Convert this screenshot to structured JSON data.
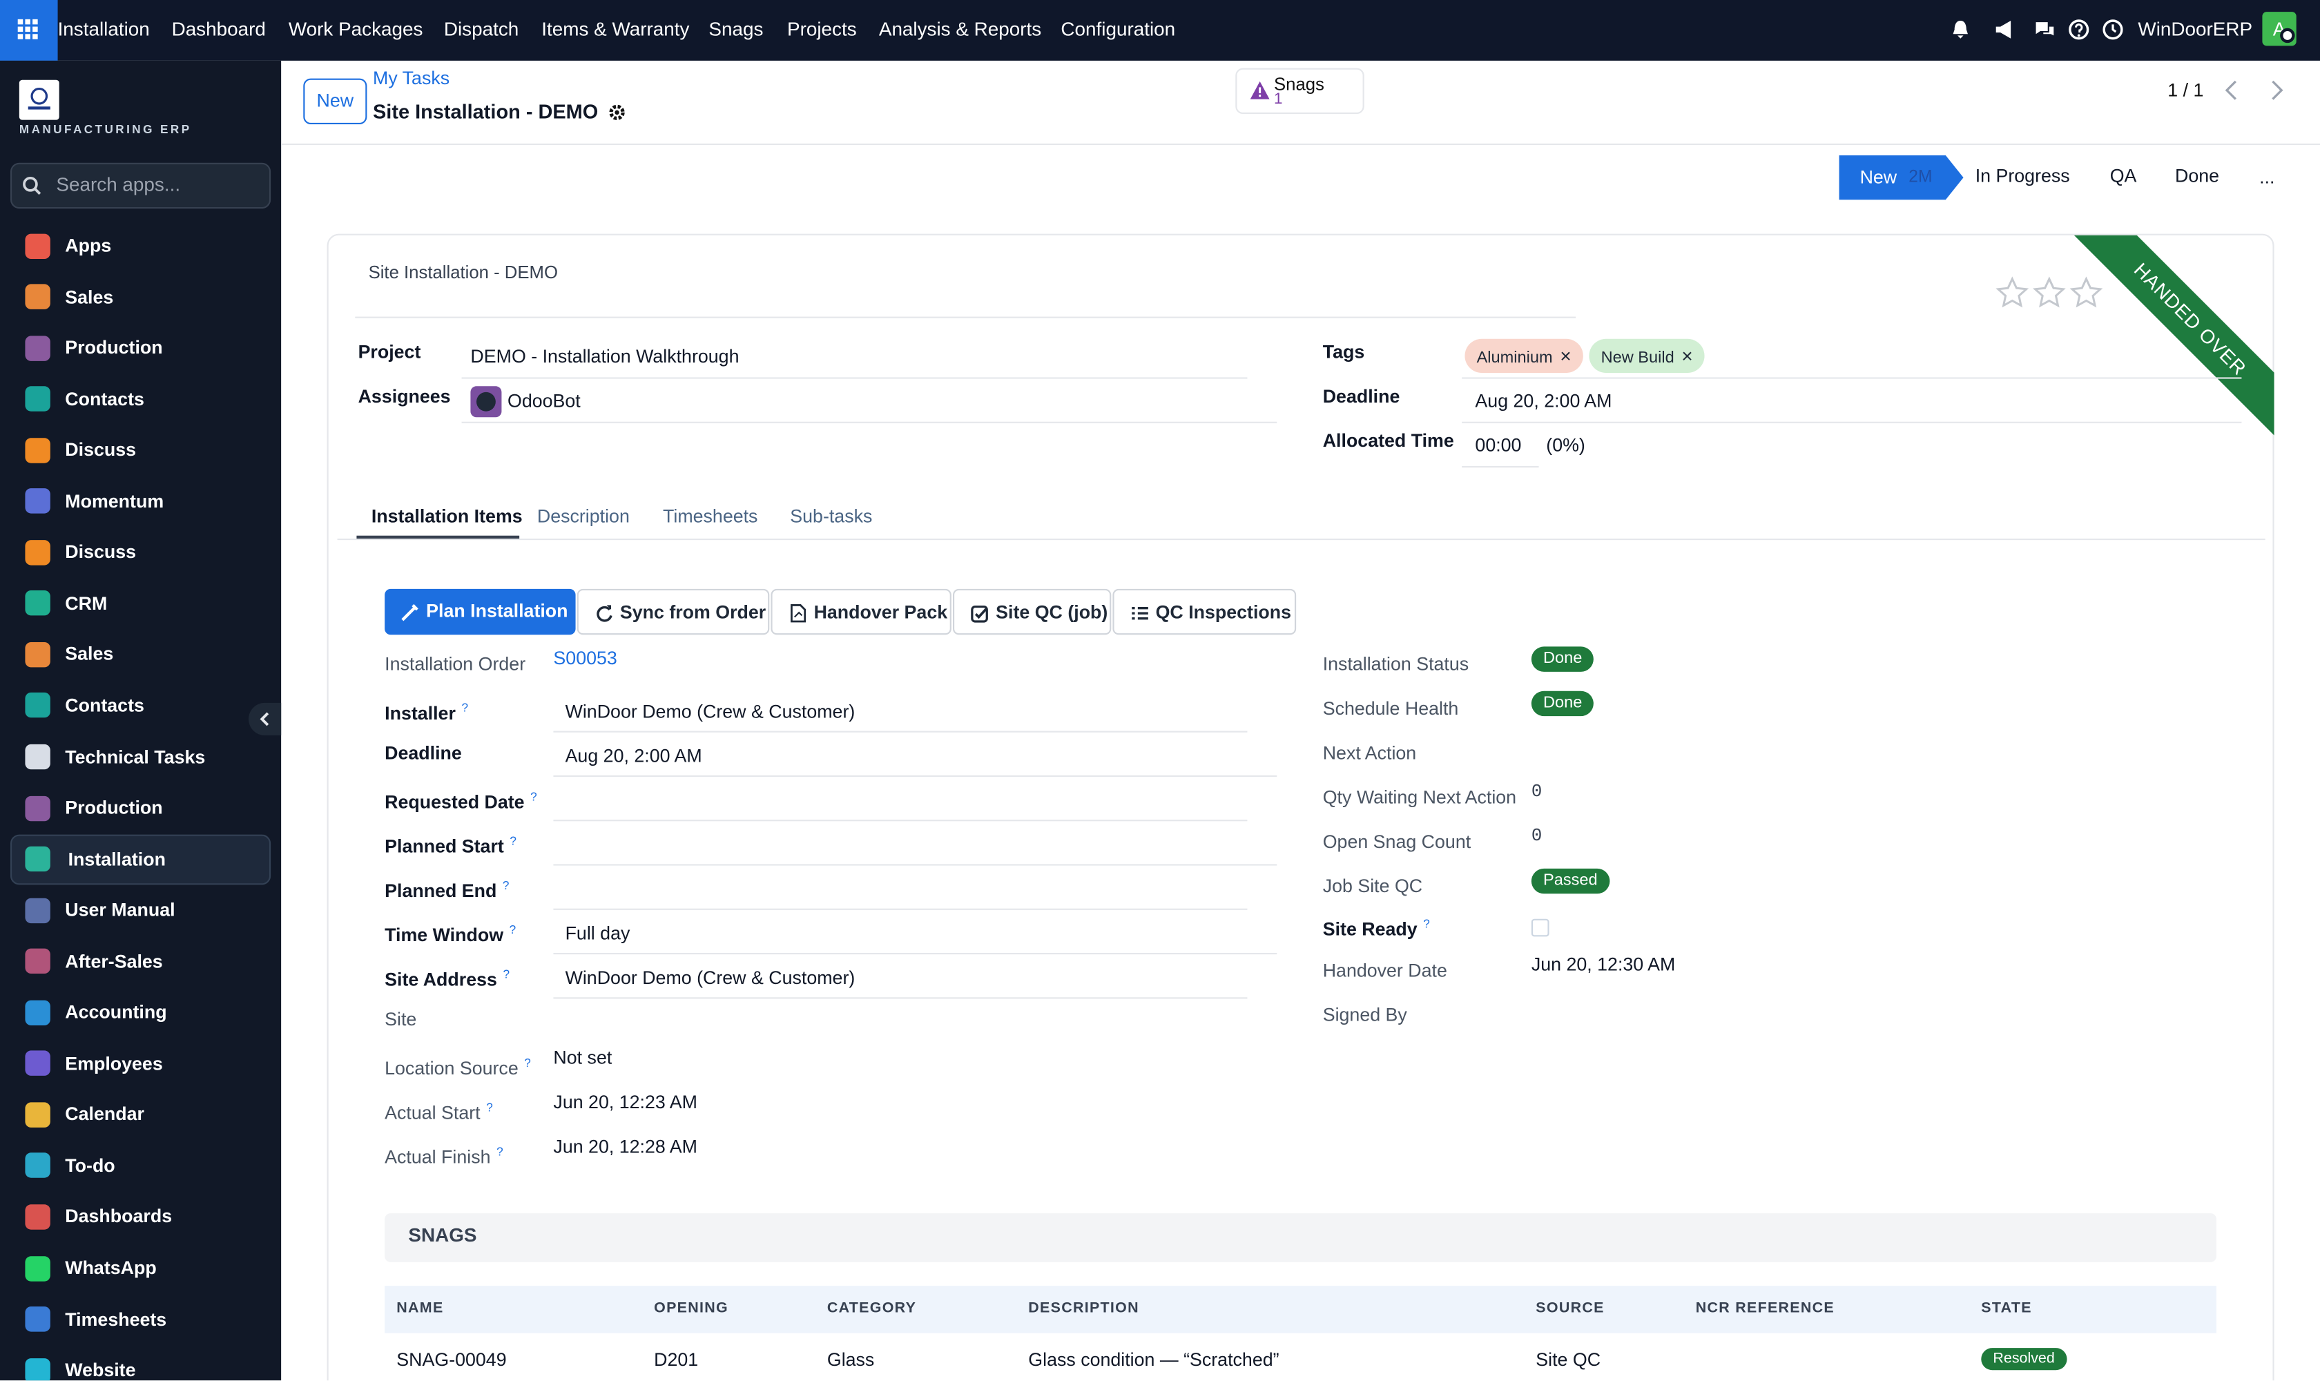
{
  "topbar": {
    "app_name": "Installation",
    "menu": [
      "Dashboard",
      "Work Packages",
      "Dispatch",
      "Items & Warranty",
      "Snags",
      "Projects",
      "Analysis & Reports",
      "Configuration"
    ],
    "company": "WinDoorERP",
    "avatar": "A"
  },
  "sidebar": {
    "brand": "MANUFACTURING ERP",
    "search_placeholder": "Search apps...",
    "apps": [
      {
        "label": "Apps",
        "icon_color": "#e8594a"
      },
      {
        "label": "Sales",
        "icon_color": "#e8873a"
      },
      {
        "label": "Production",
        "icon_color": "#8a5a9e"
      },
      {
        "label": "Contacts",
        "icon_color": "#1aa39a"
      },
      {
        "label": "Discuss",
        "icon_color": "#f08a24"
      },
      {
        "label": "Momentum",
        "icon_color": "#5b6fd6"
      },
      {
        "label": "Discuss",
        "icon_color": "#f08a24"
      },
      {
        "label": "CRM",
        "icon_color": "#1fae8f"
      },
      {
        "label": "Sales",
        "icon_color": "#e8873a"
      },
      {
        "label": "Contacts",
        "icon_color": "#1aa39a"
      },
      {
        "label": "Technical Tasks",
        "icon_color": "#d8dde6"
      },
      {
        "label": "Production",
        "icon_color": "#8a5a9e"
      },
      {
        "label": "Installation",
        "icon_color": "#2bb39a",
        "active": true
      },
      {
        "label": "User Manual",
        "icon_color": "#5b6fa8"
      },
      {
        "label": "After-Sales",
        "icon_color": "#b0547a"
      },
      {
        "label": "Accounting",
        "icon_color": "#2a8fd6"
      },
      {
        "label": "Employees",
        "icon_color": "#6d5bd0"
      },
      {
        "label": "Calendar",
        "icon_color": "#e9b53a"
      },
      {
        "label": "To-do",
        "icon_color": "#2aa7c9"
      },
      {
        "label": "Dashboards",
        "icon_color": "#d9534f"
      },
      {
        "label": "WhatsApp",
        "icon_color": "#25d366"
      },
      {
        "label": "Timesheets",
        "icon_color": "#3a7bd5"
      },
      {
        "label": "Website",
        "icon_color": "#23b5d3"
      }
    ]
  },
  "control_panel": {
    "new_button": "New",
    "breadcrumb": "My Tasks",
    "record_title": "Site Installation - DEMO",
    "smart_button": {
      "label": "Snags",
      "count": 1
    },
    "pager": "1 / 1"
  },
  "statusbar": {
    "stages": [
      {
        "label": "New",
        "active": true,
        "duration": "2M"
      },
      {
        "label": "In Progress"
      },
      {
        "label": "QA"
      },
      {
        "label": "Done"
      }
    ],
    "more": "..."
  },
  "form": {
    "name": "Site Installation - DEMO",
    "ribbon": "HANDED OVER",
    "help_mark": "?",
    "remove_mark": "×",
    "header_left": [
      {
        "label": "Project",
        "value": "DEMO - Installation Walkthrough"
      },
      {
        "label": "Assignees",
        "value": "OdooBot"
      }
    ],
    "header_right": [
      {
        "label": "Tags",
        "tags": [
          {
            "label": "Aluminium",
            "color": "#f9d6cc"
          },
          {
            "label": "New Build",
            "color": "#d2efd4"
          }
        ]
      },
      {
        "label": "Deadline",
        "value": "Aug 20, 2:00 AM"
      },
      {
        "label": "Allocated Time",
        "value": "00:00",
        "extra": "(0%)"
      }
    ],
    "tabs": [
      {
        "label": "Installation Items",
        "active": true
      },
      {
        "label": "Description"
      },
      {
        "label": "Timesheets"
      },
      {
        "label": "Sub-tasks"
      }
    ],
    "actions": [
      {
        "label": "Plan Installation",
        "primary": true
      },
      {
        "label": "Sync from Order"
      },
      {
        "label": "Handover Pack"
      },
      {
        "label": "Site QC (job)"
      },
      {
        "label": "QC Inspections"
      }
    ],
    "fields_left": [
      {
        "label": "Installation Order",
        "value": "S00053",
        "kind": "link"
      },
      {
        "label": "Installer",
        "value": "WinDoor Demo (Crew & Customer)",
        "kind": "input",
        "help": true
      },
      {
        "label": "Deadline",
        "value": "Aug 20, 2:00 AM",
        "kind": "input"
      },
      {
        "label": "Requested Date",
        "value": null,
        "kind": "input",
        "help": true
      },
      {
        "label": "Planned Start",
        "value": null,
        "kind": "input",
        "help": true
      },
      {
        "label": "Planned End",
        "value": null,
        "kind": "input",
        "help": true
      },
      {
        "label": "Time Window",
        "value": "Full day",
        "kind": "input",
        "help": true
      },
      {
        "label": "Site Address",
        "value": "WinDoor Demo (Crew & Customer)",
        "kind": "input",
        "help": true
      },
      {
        "label": "Site",
        "value": null,
        "kind": "text"
      },
      {
        "label": "Location Source",
        "value": "Not set",
        "kind": "text",
        "help": true
      },
      {
        "label": "Actual Start",
        "value": "Jun 20, 12:23 AM",
        "kind": "text",
        "help": true
      },
      {
        "label": "Actual Finish",
        "value": "Jun 20, 12:28 AM",
        "kind": "text",
        "help": true
      }
    ],
    "fields_right": [
      {
        "label": "Installation Status",
        "value": "Done",
        "kind": "badge",
        "color": "#1f7a3b"
      },
      {
        "label": "Schedule Health",
        "value": "Done",
        "kind": "badge",
        "color": "#1f7a3b"
      },
      {
        "label": "Next Action",
        "value": null,
        "kind": "text"
      },
      {
        "label": "Qty Waiting Next Action",
        "value": 0,
        "kind": "mono"
      },
      {
        "label": "Open Snag Count",
        "value": 0,
        "kind": "mono"
      },
      {
        "label": "Job Site QC",
        "value": "Passed",
        "kind": "badge",
        "color": "#1f7a3b"
      },
      {
        "label": "Site Ready",
        "kind": "checkbox",
        "checked": false,
        "help": true
      },
      {
        "label": "Handover Date",
        "value": "Jun 20, 12:30 AM",
        "kind": "text"
      },
      {
        "label": "Signed By",
        "value": null,
        "kind": "text"
      }
    ],
    "snags": {
      "title": "SNAGS",
      "columns": [
        "NAME",
        "OPENING",
        "CATEGORY",
        "DESCRIPTION",
        "SOURCE",
        "NCR REFERENCE",
        "STATE"
      ],
      "rows": [
        [
          "SNAG-00049",
          "D201",
          "Glass",
          "Glass condition — “Scratched”",
          "Site QC",
          null,
          {
            "text": "Resolved",
            "color": "#1f7a3b"
          }
        ]
      ]
    }
  }
}
